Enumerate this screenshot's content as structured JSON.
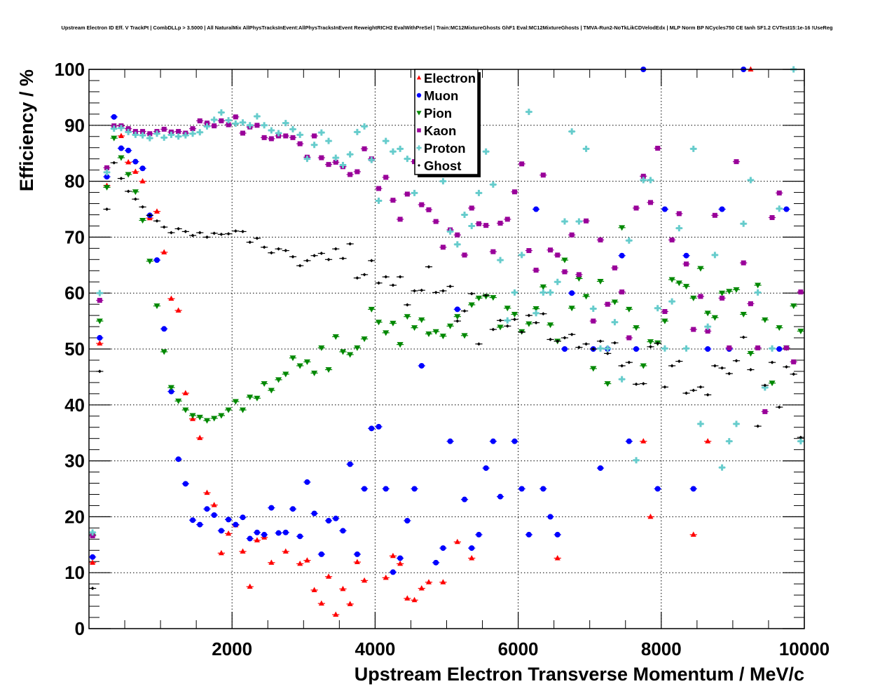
{
  "chart_data": {
    "type": "scatter",
    "title": "Upstream Electron ID Eff. V TrackPt | CombDLLp > 3.5000 | All NaturalMix AllPhysTracksInEvent:AllPhysTracksInEvent ReweightRICH2 EvalWithPreSel | Train:MC12MixtureGhosts GhF1 Eval:MC12MixtureGhosts | TMVA-Run2-NoTkLikCDVelodEdx | MLP Norm BP NCycles750 CE tanh SF1.2 CVTest15:1e-16 !UseReg",
    "xlabel": "Upstream Electron Transverse Momentum / MeV/c",
    "ylabel": "Efficiency / %",
    "xlim": [
      0,
      10000
    ],
    "ylim": [
      0,
      100
    ],
    "xticks": [
      "2000",
      "4000",
      "6000",
      "8000",
      "10000"
    ],
    "xtick_values": [
      2000,
      4000,
      6000,
      8000,
      10000
    ],
    "yticks": [
      "0",
      "10",
      "20",
      "30",
      "40",
      "50",
      "60",
      "70",
      "80",
      "90",
      "100"
    ],
    "ytick_values": [
      0,
      10,
      20,
      30,
      40,
      50,
      60,
      70,
      80,
      90,
      100
    ],
    "grid": true,
    "legend_position": "top-center",
    "bin_width": 100,
    "x_start": 50,
    "series": [
      {
        "name": "Electron",
        "color": "#ff0000",
        "marker": "triangle-up",
        "values": [
          11.8,
          51,
          79.2,
          null,
          88.1,
          83.4,
          81.7,
          80,
          73.4,
          74.6,
          67.3,
          59,
          56.9,
          42.1,
          37.5,
          34.1,
          24.3,
          22.1,
          13.5,
          17,
          18.5,
          13.8,
          7.5,
          15.8,
          16.3,
          11.8,
          null,
          13.8,
          null,
          11.6,
          12.2,
          6.9,
          4.5,
          9.3,
          2.5,
          7.1,
          4.4,
          11.9,
          8.6,
          null,
          null,
          9.1,
          13,
          11.6,
          5.4,
          5.1,
          7.2,
          8.3,
          null,
          8.3,
          null,
          15.5,
          null,
          12.6,
          null,
          null,
          null,
          null,
          null,
          null,
          null,
          null,
          null,
          null,
          null,
          12.6,
          null,
          null,
          null,
          null,
          null,
          null,
          null,
          null,
          null,
          null,
          null,
          33.5,
          20,
          null,
          null,
          null,
          null,
          null,
          16.8,
          null,
          33.5,
          null,
          null,
          null,
          null,
          null,
          100,
          null,
          null,
          null,
          null,
          null,
          null,
          null
        ]
      },
      {
        "name": "Muon",
        "color": "#0000ff",
        "marker": "circle",
        "values": [
          12.8,
          52,
          80.8,
          91.5,
          85.9,
          85.5,
          83.5,
          82.3,
          73.9,
          65.9,
          53.6,
          42.4,
          30.3,
          25.9,
          19.4,
          18.6,
          21.4,
          20.3,
          17.5,
          19.5,
          18.6,
          19.9,
          16.1,
          17.2,
          16.8,
          21.6,
          17.1,
          17.2,
          21.4,
          16.5,
          26.2,
          20.6,
          13.3,
          19.3,
          19.7,
          17.5,
          29.4,
          13.3,
          25,
          35.8,
          36.1,
          25,
          10.1,
          12.6,
          19.3,
          25,
          47,
          null,
          11.8,
          14.4,
          33.5,
          57.1,
          23.1,
          14.4,
          16.8,
          28.7,
          33.5,
          23.6,
          null,
          33.5,
          25,
          16.8,
          75,
          25,
          20,
          16.8,
          50,
          60,
          null,
          null,
          50,
          28.7,
          50,
          null,
          66.7,
          33.5,
          50,
          100,
          null,
          25,
          75,
          null,
          null,
          66.7,
          25,
          null,
          50,
          null,
          75,
          50,
          null,
          100,
          null,
          null,
          null,
          null,
          50,
          75,
          null,
          null
        ]
      },
      {
        "name": "Pion",
        "color": "#008800",
        "marker": "triangle-down",
        "values": [
          16.8,
          55,
          78.9,
          87.7,
          84.2,
          81.2,
          78.1,
          73,
          65.7,
          57.7,
          49.5,
          43.1,
          40.7,
          39.1,
          38.1,
          37.8,
          37.2,
          37.6,
          38.1,
          39.1,
          40.6,
          39.1,
          41.4,
          41.2,
          43.8,
          42.6,
          44.5,
          45.5,
          48.4,
          47,
          47.7,
          45.7,
          50.2,
          46.3,
          52.2,
          49.5,
          49,
          50.2,
          51.8,
          57.1,
          54.8,
          52.9,
          54.6,
          50.8,
          55.8,
          53.8,
          55.2,
          52.7,
          53.1,
          52.3,
          54.1,
          55.8,
          52.4,
          57.9,
          59.1,
          59.4,
          59.2,
          53.9,
          57.3,
          56.2,
          53.1,
          54.5,
          57.2,
          61.1,
          54.3,
          51.4,
          65.9,
          57.3,
          62.6,
          59.4,
          46.5,
          62.1,
          43.8,
          58.4,
          71.7,
          57.1,
          53.8,
          47,
          51.3,
          51.1,
          55,
          62.4,
          61.8,
          61.2,
          59.1,
          64.4,
          56.4,
          55.6,
          60,
          60.3,
          60.6,
          56.2,
          49.2,
          61.4,
          55.2,
          43.9,
          53.8,
          50.2,
          57.7,
          53.2
        ]
      },
      {
        "name": "Kaon",
        "color": "#990099",
        "marker": "square",
        "values": [
          16.6,
          58.7,
          82.4,
          89.9,
          89.9,
          89.4,
          88.9,
          88.9,
          88.5,
          88.9,
          89.3,
          88.8,
          88.9,
          88.6,
          89.4,
          90.8,
          90.4,
          89.9,
          90.8,
          90.1,
          91.5,
          88.6,
          89.7,
          90,
          87.8,
          87.6,
          88.1,
          88.1,
          87.8,
          86.7,
          84.3,
          88.1,
          84.2,
          83,
          83.4,
          82.6,
          81.2,
          81.7,
          85.8,
          84,
          78.7,
          80.7,
          76.6,
          73.2,
          77.7,
          83.5,
          75.8,
          74.9,
          72.8,
          68.2,
          71.3,
          70.4,
          66.8,
          75.2,
          72.4,
          72.1,
          67.4,
          72.5,
          73.2,
          78.1,
          83.1,
          67.6,
          64.1,
          81.1,
          67.7,
          66.8,
          63.8,
          70.4,
          63.3,
          72.9,
          55,
          69.5,
          58,
          64.5,
          60.2,
          52,
          75.2,
          80.9,
          76.2,
          85.9,
          56.7,
          69.5,
          74.2,
          65.2,
          53.5,
          59.4,
          53.2,
          73.9,
          59.1,
          50.2,
          83.5,
          65.4,
          58.1,
          50.2,
          38.8,
          73.5,
          77.9,
          50.2,
          47.7,
          60.2
        ]
      },
      {
        "name": "Proton",
        "color": "#66cccc",
        "marker": "cross",
        "values": [
          17.2,
          60,
          81.6,
          89.4,
          89.5,
          88.8,
          88.3,
          88.2,
          87.7,
          88.5,
          87.8,
          88.3,
          88,
          88.2,
          88.5,
          88.75,
          89.8,
          91,
          92.3,
          90.9,
          90.3,
          90.5,
          90,
          91.6,
          90,
          89.1,
          88.6,
          90.4,
          89.3,
          88.3,
          84,
          86.5,
          88.7,
          87.2,
          84.2,
          82.9,
          84.8,
          88.8,
          89.8,
          83.8,
          76.5,
          87.2,
          85.3,
          85.8,
          84,
          77.9,
          83,
          85,
          84,
          80,
          71,
          68.7,
          74,
          72,
          77.9,
          85.3,
          79.4,
          65.9,
          55.1,
          60.1,
          66.8,
          92.4,
          56.4,
          60.1,
          60.1,
          62,
          72.8,
          88.9,
          72.8,
          85.8,
          57.2,
          50.1,
          50.1,
          54.8,
          44.6,
          69.4,
          30.1,
          80.2,
          80.2,
          57.3,
          50.1,
          58.5,
          71.6,
          50.1,
          85.8,
          36.6,
          54,
          66.8,
          28.8,
          33.5,
          36.6,
          72.4,
          80.2,
          60.1,
          43.1,
          50.1,
          75.1,
          null,
          100,
          33.5
        ]
      },
      {
        "name": "Ghost",
        "color": "#000000",
        "marker": "diamond",
        "values": [
          7.2,
          46,
          75,
          83.3,
          80.5,
          78.2,
          76.8,
          75.4,
          73.9,
          72.9,
          71.8,
          70.8,
          71.5,
          71,
          70.3,
          70.8,
          70,
          70.7,
          70.5,
          70.6,
          71.1,
          71,
          69.1,
          69.8,
          68.2,
          67.2,
          67.9,
          67.6,
          66.5,
          64.9,
          65.8,
          66.7,
          67.1,
          66,
          67.9,
          66.2,
          68.8,
          62.7,
          63.3,
          65.8,
          61.8,
          62.9,
          61.4,
          62.9,
          57.9,
          60.4,
          60.5,
          64.7,
          60.1,
          60.4,
          61.2,
          55,
          56.8,
          59.9,
          50.9,
          59.6,
          53.5,
          55.1,
          54.1,
          55.3,
          53,
          56,
          54.7,
          56.3,
          51.7,
          51.4,
          52,
          52.6,
          50.3,
          50.9,
          50,
          51.4,
          49.2,
          51.1,
          47,
          47.6,
          43.7,
          43.8,
          50.4,
          51,
          43.2,
          47,
          47.8,
          42.1,
          42.6,
          43.2,
          41.8,
          47,
          46.6,
          45.6,
          47.9,
          52.1,
          46.3,
          36.2,
          43.5,
          47.6,
          39.6,
          46.8,
          45.5,
          34.2
        ]
      }
    ]
  }
}
